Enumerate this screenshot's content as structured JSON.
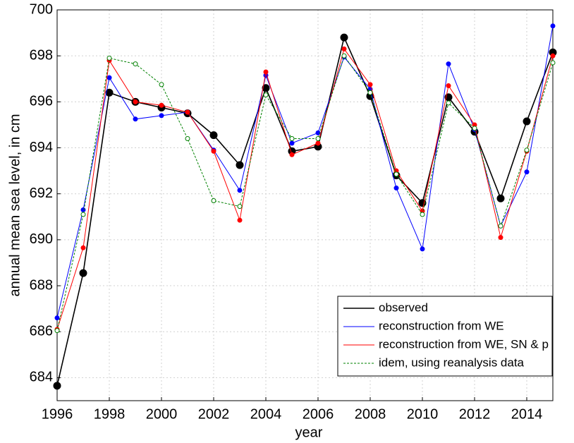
{
  "chart_data": {
    "type": "line",
    "x_label": "year",
    "y_label": "annual mean sea level, in cm",
    "x": [
      1996,
      1997,
      1998,
      1999,
      2000,
      2001,
      2002,
      2003,
      2004,
      2005,
      2006,
      2007,
      2008,
      2009,
      2010,
      2011,
      2012,
      2013,
      2014,
      2015
    ],
    "xlim": [
      1996,
      2015
    ],
    "xticks": [
      1996,
      1998,
      2000,
      2002,
      2004,
      2006,
      2008,
      2010,
      2012,
      2014
    ],
    "ylim": [
      683,
      700
    ],
    "yticks": [
      684,
      686,
      688,
      690,
      692,
      694,
      696,
      698,
      700
    ],
    "grid": true,
    "legend": "lower right",
    "series": [
      {
        "name": "observed",
        "color": "#000000",
        "line_style": "solid",
        "marker_fill": "filled",
        "values": [
          683.65,
          688.55,
          696.4,
          696.0,
          695.75,
          695.5,
          694.55,
          693.25,
          696.6,
          693.85,
          694.05,
          698.8,
          696.25,
          692.8,
          691.6,
          696.2,
          694.7,
          691.8,
          695.15,
          698.15
        ]
      },
      {
        "name": "reconstruction from WE",
        "color": "#0000ff",
        "line_style": "solid",
        "marker_fill": "filled",
        "values": [
          686.6,
          691.3,
          697.05,
          695.25,
          695.4,
          695.55,
          693.9,
          692.15,
          697.15,
          694.2,
          694.65,
          697.95,
          696.55,
          692.25,
          689.6,
          697.65,
          694.8,
          690.6,
          692.95,
          699.3
        ]
      },
      {
        "name": "reconstruction from WE, SN & p",
        "color": "#ff0000",
        "line_style": "solid",
        "marker_fill": "filled",
        "values": [
          686.1,
          689.65,
          697.8,
          696.0,
          695.85,
          695.55,
          693.85,
          690.85,
          697.3,
          693.7,
          694.2,
          698.3,
          696.75,
          693.0,
          691.25,
          696.7,
          695.0,
          690.1,
          693.85,
          698.0
        ]
      },
      {
        "name": "idem, using reanalysis data",
        "color": "#008000",
        "line_style": "dashed",
        "marker_fill": "open",
        "values": [
          686.05,
          691.1,
          697.9,
          697.65,
          696.75,
          694.4,
          691.7,
          691.45,
          696.3,
          694.4,
          694.4,
          698.0,
          696.4,
          692.85,
          691.1,
          695.95,
          694.85,
          690.6,
          693.9,
          697.7
        ]
      }
    ]
  }
}
